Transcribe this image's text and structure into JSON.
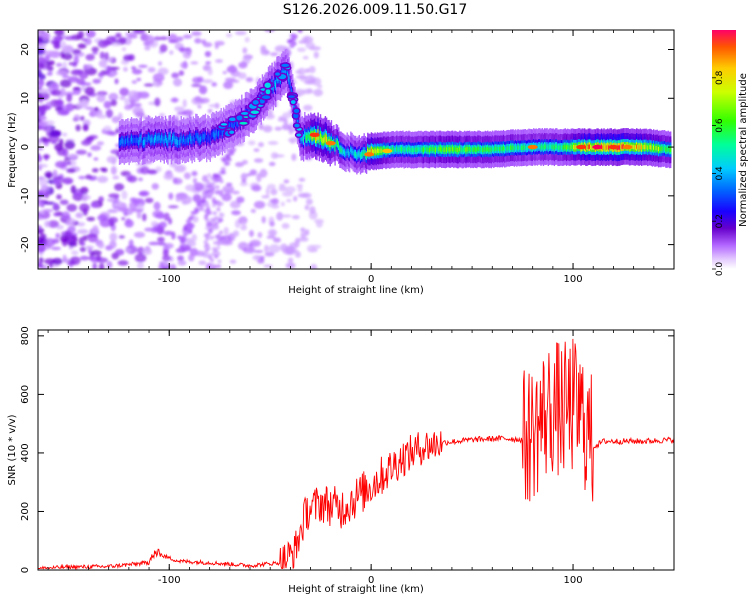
{
  "title": "S126.2026.009.11.50.G17",
  "chart_data": [
    {
      "type": "heatmap",
      "title": "S126.2026.009.11.50.G17",
      "xlabel": "Height of straight line (km)",
      "ylabel": "Frequency (Hz)",
      "xlim": [
        -165,
        150
      ],
      "ylim": [
        -25,
        24
      ],
      "x_ticks": [
        -100,
        0,
        100
      ],
      "x_tick_labels": [
        "-100",
        "0",
        "100"
      ],
      "y_ticks": [
        20,
        10,
        0,
        -10,
        -20
      ],
      "y_tick_labels": [
        "20",
        "10",
        "0",
        "-10",
        "-20"
      ],
      "colorbar": {
        "label": "Normalized spectral amplitude",
        "range": [
          0,
          1
        ],
        "ticks": [
          0.0,
          0.2,
          0.4,
          0.6,
          0.8
        ],
        "tick_labels": [
          "0.0",
          "0.2",
          "0.4",
          "0.6",
          "0.8"
        ],
        "colors": [
          "#ffffff",
          "#cc99ff",
          "#7700cc",
          "#0000ff",
          "#00ccff",
          "#00ff66",
          "#99ff00",
          "#ffff00",
          "#ff9900",
          "#ff0000"
        ]
      },
      "ridge": {
        "x": [
          -125,
          -110,
          -95,
          -80,
          -70,
          -60,
          -50,
          -42,
          -35,
          -28,
          -20,
          -12,
          -5,
          0,
          10,
          25,
          40,
          60,
          80,
          95,
          105,
          120,
          135,
          148
        ],
        "y": [
          1,
          1.5,
          1.5,
          2,
          4,
          7,
          12,
          16,
          2,
          2.5,
          1,
          -1,
          -1.5,
          -1,
          -0.5,
          -0.5,
          -0.5,
          -0.5,
          0,
          0,
          0,
          0,
          0,
          -0.5
        ],
        "amplitude": [
          0.35,
          0.4,
          0.4,
          0.35,
          0.35,
          0.4,
          0.45,
          0.4,
          0.4,
          0.85,
          0.7,
          0.45,
          0.5,
          0.85,
          0.55,
          0.6,
          0.65,
          0.6,
          0.55,
          0.6,
          0.85,
          0.95,
          0.8,
          0.6
        ]
      }
    },
    {
      "type": "line",
      "xlabel": "Height of straight line (km)",
      "ylabel": "SNR (10 * v/v)",
      "xlim": [
        -165,
        150
      ],
      "ylim": [
        0,
        820
      ],
      "x_ticks": [
        -100,
        0,
        100
      ],
      "x_tick_labels": [
        "-100",
        "0",
        "100"
      ],
      "y_ticks": [
        0,
        200,
        400,
        600,
        800
      ],
      "y_tick_labels": [
        "0",
        "200",
        "400",
        "600",
        "800"
      ],
      "series": [
        {
          "name": "SNR",
          "color": "#ff0000",
          "x": [
            -165,
            -150,
            -130,
            -110,
            -104,
            -95,
            -80,
            -60,
            -45,
            -38,
            -32,
            -25,
            -15,
            -5,
            5,
            15,
            25,
            35,
            50,
            65,
            75,
            80,
            85,
            90,
            95,
            100,
            105,
            110,
            115,
            125,
            135,
            150
          ],
          "y": [
            5,
            10,
            12,
            25,
            50,
            30,
            25,
            15,
            25,
            60,
            200,
            230,
            210,
            260,
            320,
            380,
            420,
            435,
            445,
            450,
            445,
            470,
            520,
            560,
            540,
            560,
            520,
            420,
            440,
            440,
            440,
            445
          ]
        }
      ]
    }
  ]
}
